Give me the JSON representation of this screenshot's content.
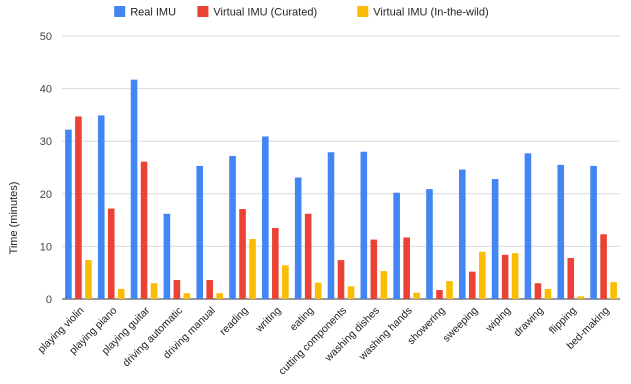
{
  "chart_data": {
    "type": "bar",
    "title": "",
    "xlabel": "",
    "ylabel": "Time (minutes)",
    "ylim": [
      0,
      50
    ],
    "yticks": [
      0,
      10,
      20,
      30,
      40,
      50
    ],
    "grid": true,
    "legend_position": "top",
    "categories": [
      "playing violin",
      "playing piano",
      "playing guitar",
      "driving automatic",
      "driving manual",
      "reading",
      "writing",
      "eating",
      "cutting components",
      "washing dishes",
      "washing hands",
      "showering",
      "sweeping",
      "wiping",
      "drawing",
      "flipping",
      "bed-making"
    ],
    "series": [
      {
        "name": "Real IMU",
        "color": "#4285F4",
        "values": [
          32.2,
          34.9,
          41.7,
          16.2,
          25.3,
          27.2,
          30.9,
          23.1,
          27.9,
          28.0,
          20.2,
          20.9,
          24.6,
          22.8,
          27.7,
          25.5,
          25.3
        ]
      },
      {
        "name": "Virtual IMU (Curated)",
        "color": "#EA4335",
        "values": [
          34.7,
          17.2,
          26.1,
          3.6,
          3.6,
          17.1,
          13.5,
          16.2,
          7.4,
          11.3,
          11.7,
          1.7,
          5.2,
          8.4,
          3.0,
          7.8,
          12.3
        ]
      },
      {
        "name": "Virtual IMU (In-the-wild)",
        "color": "#FBBC04",
        "values": [
          7.4,
          1.9,
          3.0,
          1.1,
          1.1,
          11.4,
          6.4,
          3.1,
          2.4,
          5.3,
          1.2,
          3.4,
          9.0,
          8.7,
          1.9,
          0.5,
          3.2
        ]
      }
    ]
  }
}
